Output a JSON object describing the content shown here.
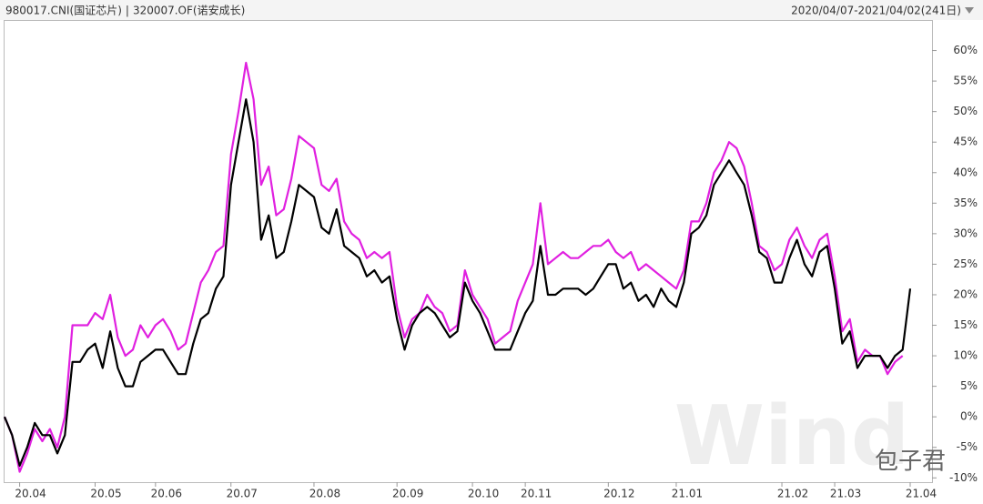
{
  "chart_data": {
    "type": "line",
    "legend": [
      {
        "name": "980017.CNI(国证芯片)",
        "color": "#000000"
      },
      {
        "name": "320007.OF(诺安成长)",
        "color": "#e020e0"
      }
    ],
    "separator": "|",
    "date_range": "2020/04/07-2021/04/02(241日)",
    "watermark": "Wind",
    "watermark2": "包子君",
    "categories": [
      null,
      null,
      "20.04",
      null,
      null,
      null,
      null,
      null,
      null,
      null,
      null,
      null,
      "20.05",
      null,
      null,
      null,
      null,
      null,
      null,
      null,
      "20.06",
      null,
      null,
      null,
      null,
      null,
      null,
      null,
      null,
      null,
      "20.07",
      null,
      null,
      null,
      null,
      null,
      null,
      null,
      null,
      null,
      null,
      "20.08",
      null,
      null,
      null,
      null,
      null,
      null,
      null,
      null,
      null,
      null,
      "20.09",
      null,
      null,
      null,
      null,
      null,
      null,
      null,
      null,
      null,
      "20.10",
      null,
      null,
      null,
      null,
      null,
      null,
      "20.11",
      null,
      null,
      null,
      null,
      null,
      null,
      null,
      null,
      null,
      null,
      "20.12",
      null,
      null,
      null,
      null,
      null,
      null,
      null,
      null,
      "21.01",
      null,
      null,
      null,
      null,
      null,
      null,
      null,
      null,
      null,
      null,
      null,
      null,
      null,
      "21.02",
      null,
      null,
      null,
      null,
      null,
      null,
      "21.03",
      null,
      null,
      null,
      null,
      null,
      null,
      null,
      null,
      null,
      "21.04"
    ],
    "series": [
      {
        "name": "980017.CNI(国证芯片)",
        "color": "#000000",
        "values": [
          0,
          -3,
          -8,
          -5,
          -1,
          -3,
          -3,
          -6,
          -3,
          9,
          9,
          11,
          12,
          8,
          14,
          8,
          5,
          5,
          9,
          10,
          11,
          11,
          9,
          7,
          7,
          12,
          16,
          17,
          21,
          23,
          38,
          45,
          52,
          45,
          29,
          33,
          26,
          27,
          32,
          38,
          37,
          36,
          31,
          30,
          34,
          28,
          27,
          26,
          23,
          24,
          22,
          23,
          16,
          11,
          15,
          17,
          18,
          17,
          15,
          13,
          14,
          22,
          19,
          17,
          14,
          11,
          11,
          11,
          14,
          17,
          19,
          28,
          20,
          20,
          21,
          21,
          21,
          20,
          21,
          23,
          25,
          25,
          21,
          22,
          19,
          20,
          18,
          21,
          19,
          18,
          22,
          30,
          31,
          33,
          38,
          40,
          42,
          40,
          38,
          33,
          27,
          26,
          22,
          22,
          26,
          29,
          25,
          23,
          27,
          28,
          21,
          12,
          14,
          8,
          10,
          10,
          10,
          8,
          10,
          11,
          21
        ]
      },
      {
        "name": "320007.OF(诺安成长)",
        "color": "#e020e0",
        "values": [
          0,
          -3,
          -9,
          -6,
          -2,
          -4,
          -2,
          -5,
          0,
          15,
          15,
          15,
          17,
          16,
          20,
          13,
          10,
          11,
          15,
          13,
          15,
          16,
          14,
          11,
          12,
          17,
          22,
          24,
          27,
          28,
          43,
          50,
          58,
          52,
          38,
          41,
          33,
          34,
          39,
          46,
          45,
          44,
          38,
          37,
          39,
          32,
          30,
          29,
          26,
          27,
          26,
          27,
          18,
          13,
          16,
          17,
          20,
          18,
          17,
          14,
          15,
          24,
          20,
          18,
          16,
          12,
          13,
          14,
          19,
          22,
          25,
          35,
          25,
          26,
          27,
          26,
          26,
          27,
          28,
          28,
          29,
          27,
          26,
          27,
          24,
          25,
          24,
          23,
          22,
          21,
          24,
          32,
          32,
          35,
          40,
          42,
          45,
          44,
          41,
          35,
          28,
          27,
          24,
          25,
          29,
          31,
          28,
          26,
          29,
          30,
          23,
          14,
          16,
          9,
          11,
          10,
          10,
          7,
          9,
          10,
          null
        ]
      }
    ],
    "ylim": [
      -11,
      65
    ],
    "yticks": [
      {
        "value": -10,
        "label": "-10%"
      },
      {
        "value": -5,
        "label": "-5%"
      },
      {
        "value": 0,
        "label": "0%"
      },
      {
        "value": 5,
        "label": "5%"
      },
      {
        "value": 10,
        "label": "10%"
      },
      {
        "value": 15,
        "label": "15%"
      },
      {
        "value": 20,
        "label": "20%"
      },
      {
        "value": 25,
        "label": "25%"
      },
      {
        "value": 30,
        "label": "30%"
      },
      {
        "value": 35,
        "label": "35%"
      },
      {
        "value": 40,
        "label": "40%"
      },
      {
        "value": 45,
        "label": "45%"
      },
      {
        "value": 50,
        "label": "50%"
      },
      {
        "value": 55,
        "label": "55%"
      },
      {
        "value": 60,
        "label": "60%"
      }
    ],
    "grid": false
  }
}
